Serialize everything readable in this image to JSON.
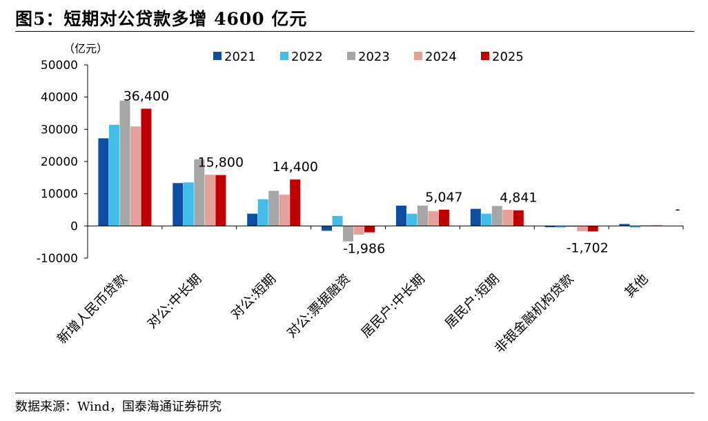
{
  "page": {
    "title": "图5：短期对公贷款多增 4600 亿元",
    "source": "数据来源：Wind，国泰海通证券研究"
  },
  "chart_data": {
    "type": "bar",
    "unit_label": "（亿元）",
    "ylim": [
      -10000,
      50000
    ],
    "yticks": [
      -10000,
      0,
      10000,
      20000,
      30000,
      40000,
      50000
    ],
    "ytick_labels": [
      "-10000",
      "0",
      "10000",
      "20000",
      "30000",
      "40000",
      "50000"
    ],
    "grid": false,
    "legend_position": "top",
    "categories": [
      "新增人民币贷款",
      "对公:中长期",
      "对公:短期",
      "对公:票据融资",
      "居民户:中长期",
      "居民户:短期",
      "非银金融机构贷款",
      "其他"
    ],
    "series": [
      {
        "name": "2021",
        "color": "#0b4ea2",
        "values": [
          27200,
          13300,
          3800,
          -1500,
          6300,
          5300,
          -400,
          600
        ]
      },
      {
        "name": "2022",
        "color": "#41bde8",
        "values": [
          31400,
          13500,
          8300,
          3100,
          3800,
          3800,
          -500,
          -500
        ]
      },
      {
        "name": "2023",
        "color": "#a6a6a6",
        "values": [
          38900,
          20700,
          10900,
          -4800,
          6300,
          6200,
          -300,
          200
        ]
      },
      {
        "name": "2024",
        "color": "#e6a09a",
        "values": [
          30900,
          15900,
          9700,
          -2700,
          4600,
          5000,
          -1600,
          300
        ]
      },
      {
        "name": "2025",
        "color": "#c00000",
        "values": [
          36400,
          15800,
          14400,
          -1986,
          5047,
          4841,
          -1702,
          null
        ]
      }
    ],
    "annotations": [
      {
        "category": "新增人民币贷款",
        "series": "2025",
        "text": "36,400"
      },
      {
        "category": "对公:中长期",
        "series": "2025",
        "text": "15,800"
      },
      {
        "category": "对公:短期",
        "series": "2025",
        "text": "14,400"
      },
      {
        "category": "对公:票据融资",
        "series": "2025",
        "text": "-1,986"
      },
      {
        "category": "居民户:中长期",
        "series": "2025",
        "text": "5,047"
      },
      {
        "category": "居民户:短期",
        "series": "2025",
        "text": "4,841"
      },
      {
        "category": "非银金融机构贷款",
        "series": "2025",
        "text": "-1,702"
      },
      {
        "category": "其他",
        "series": "2025",
        "text": "-"
      }
    ]
  }
}
